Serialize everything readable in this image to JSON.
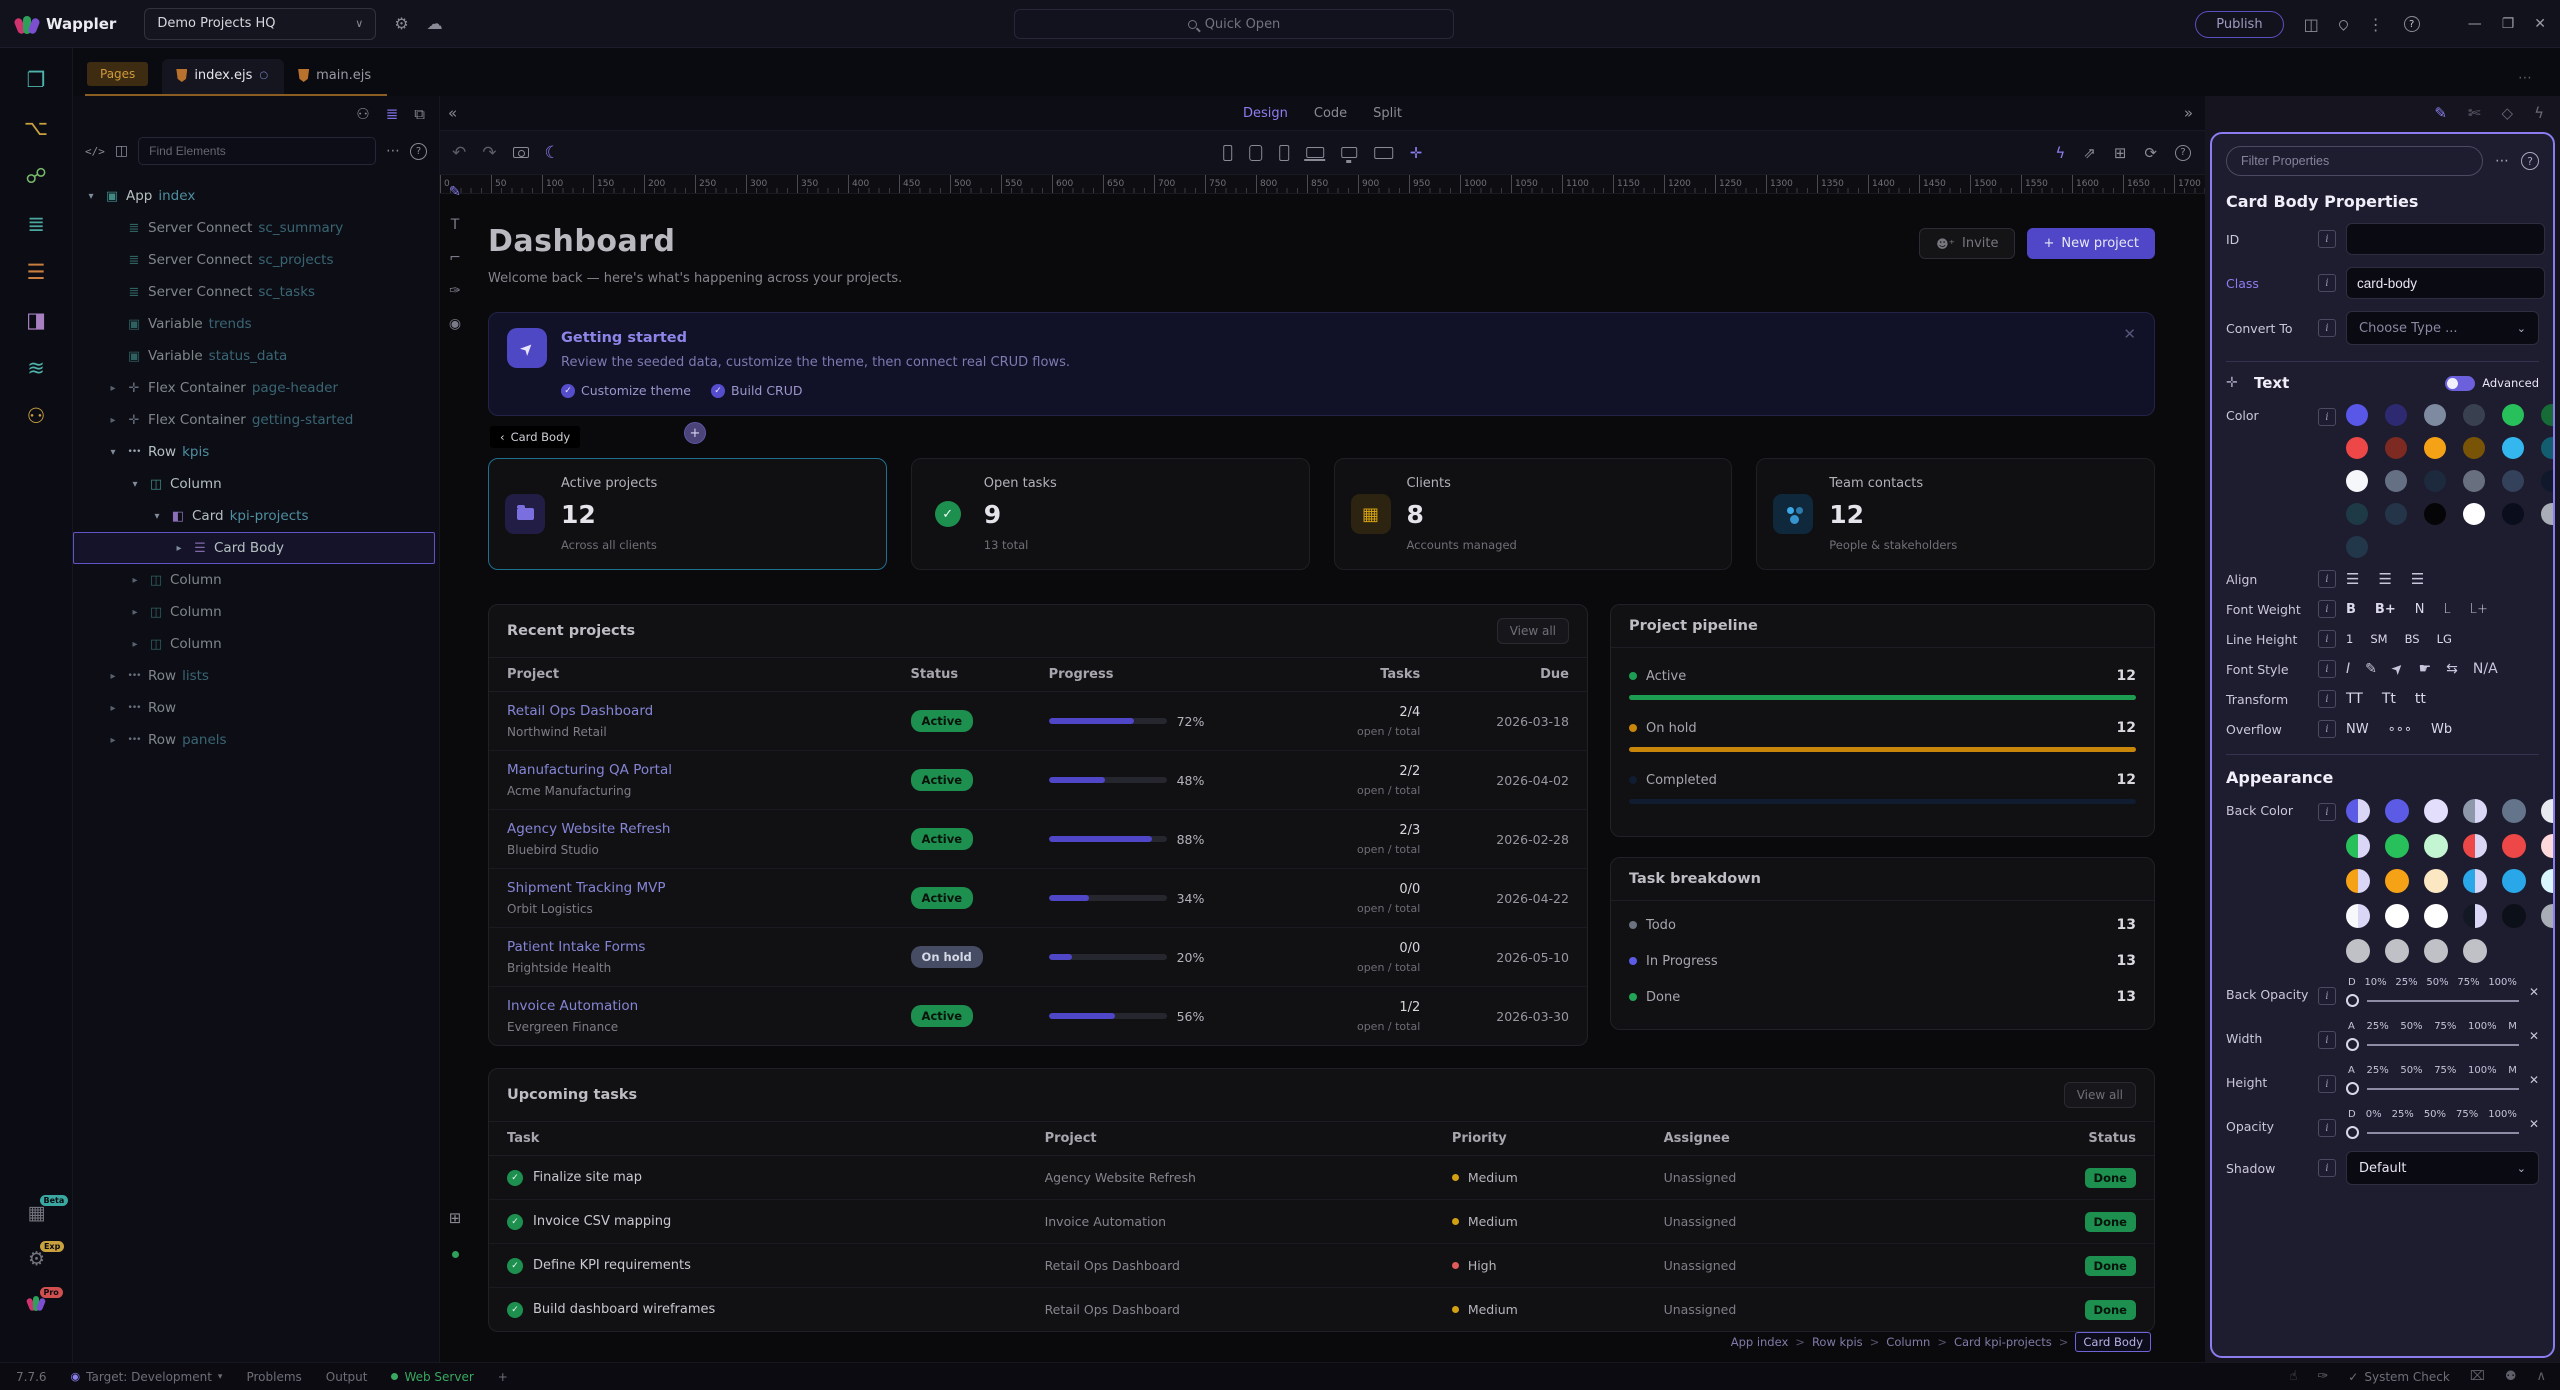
{
  "topbar": {
    "logo": "Wappler",
    "project": "Demo Projects HQ",
    "quick_open": "Quick Open",
    "publish": "Publish"
  },
  "tabs": {
    "pages": "Pages",
    "tab1": "index.ejs",
    "tab2": "main.ejs"
  },
  "rail": {
    "items": [
      {
        "icon": "pages-icon",
        "color": "#4fb3ad"
      },
      {
        "icon": "git-icon",
        "color": "#c9a23f"
      },
      {
        "icon": "workflow-icon",
        "color": "#79b86a"
      },
      {
        "icon": "database-icon",
        "color": "#4aa8a0"
      },
      {
        "icon": "routes-icon",
        "color": "#c77e3e"
      },
      {
        "icon": "design-icon",
        "color": "#a87fc0"
      },
      {
        "icon": "layers-icon",
        "color": "#4fb3ad"
      },
      {
        "icon": "robot-icon",
        "color": "#c9a23f"
      }
    ],
    "bottom": [
      {
        "icon": "puzzle-icon",
        "badge": "Beta",
        "badge_color": "#3aa8a0"
      },
      {
        "icon": "gear-icon",
        "badge": "Exp",
        "badge_color": "#c9a23f"
      },
      {
        "icon": "wappler-icon",
        "badge": "Pro",
        "badge_color": "#d05050"
      }
    ]
  },
  "treepanel": {
    "find_placeholder": "Find Elements"
  },
  "tree": {
    "items": [
      {
        "indent": 0,
        "chev": "v",
        "icon": "cube-icon",
        "color": "#3f8a84",
        "type": "App",
        "name": "index"
      },
      {
        "indent": 1,
        "chev": null,
        "icon": "database-icon",
        "color": "#3f8a84",
        "type": "Server Connect",
        "name": "sc_summary",
        "dim": true
      },
      {
        "indent": 1,
        "chev": null,
        "icon": "database-icon",
        "color": "#3f8a84",
        "type": "Server Connect",
        "name": "sc_projects",
        "dim": true
      },
      {
        "indent": 1,
        "chev": null,
        "icon": "database-icon",
        "color": "#3f8a84",
        "type": "Server Connect",
        "name": "sc_tasks",
        "dim": true
      },
      {
        "indent": 1,
        "chev": null,
        "icon": "cube-icon",
        "color": "#3f8a84",
        "type": "Variable",
        "name": "trends",
        "dim": true
      },
      {
        "indent": 1,
        "chev": null,
        "icon": "cube-icon",
        "color": "#3f8a84",
        "type": "Variable",
        "name": "status_data",
        "dim": true
      },
      {
        "indent": 1,
        "chev": ">",
        "icon": "move-icon",
        "color": "#8a96a6",
        "type": "Flex Container",
        "name": "page-header",
        "dim": true
      },
      {
        "indent": 1,
        "chev": ">",
        "icon": "move-icon",
        "color": "#8a96a6",
        "type": "Flex Container",
        "name": "getting-started",
        "dim": true
      },
      {
        "indent": 1,
        "chev": "v",
        "icon": "dots-icon",
        "color": "#9aa4ae",
        "type": "Row",
        "name": "kpis"
      },
      {
        "indent": 2,
        "chev": "v",
        "icon": "column-icon",
        "color": "#3f8a84",
        "type": "Column",
        "name": ""
      },
      {
        "indent": 3,
        "chev": "v",
        "icon": "card-icon",
        "color": "#8a6fb8",
        "type": "Card",
        "name": "kpi-projects"
      },
      {
        "indent": 4,
        "chev": ">",
        "icon": "burger-icon",
        "color": "#7e68a8",
        "type": "Card Body",
        "name": "",
        "selected": true
      },
      {
        "indent": 2,
        "chev": ">",
        "icon": "column-icon",
        "color": "#3f8a84",
        "type": "Column",
        "name": "",
        "dim": true
      },
      {
        "indent": 2,
        "chev": ">",
        "icon": "column-icon",
        "color": "#3f8a84",
        "type": "Column",
        "name": "",
        "dim": true
      },
      {
        "indent": 2,
        "chev": ">",
        "icon": "column-icon",
        "color": "#3f8a84",
        "type": "Column",
        "name": "",
        "dim": true
      },
      {
        "indent": 1,
        "chev": ">",
        "icon": "dots-icon",
        "color": "#9aa4ae",
        "type": "Row",
        "name": "lists",
        "dim": true
      },
      {
        "indent": 1,
        "chev": ">",
        "icon": "dots-icon",
        "color": "#9aa4ae",
        "type": "Row",
        "name": "",
        "dim": true
      },
      {
        "indent": 1,
        "chev": ">",
        "icon": "dots-icon",
        "color": "#9aa4ae",
        "type": "Row",
        "name": "panels",
        "dim": true
      }
    ]
  },
  "canvas": {
    "modes": {
      "design": "Design",
      "code": "Code",
      "split": "Split"
    },
    "ruler": [
      "0",
      "50",
      "100",
      "150",
      "200",
      "250",
      "300",
      "350",
      "400",
      "450",
      "500",
      "550",
      "600",
      "650",
      "700",
      "750",
      "800",
      "850",
      "900",
      "950",
      "1000",
      "1050",
      "1100",
      "1150",
      "1200",
      "1250",
      "1300",
      "1350",
      "1400",
      "1450",
      "1500",
      "1550",
      "1600",
      "1650",
      "1700"
    ]
  },
  "page": {
    "title": "Dashboard",
    "subtitle": "Welcome back — here's what's happening across your projects.",
    "invite": "Invite",
    "new_project": "New project",
    "banner": {
      "title": "Getting started",
      "desc": "Review the seeded data, customize the theme, then connect real CRUD flows.",
      "checks": [
        "Customize theme",
        "Build CRUD"
      ]
    },
    "selection_chip": "Card Body",
    "kpis": [
      {
        "title": "Active projects",
        "value": "12",
        "caption": "Across all clients",
        "icon": "folder-icon",
        "tile_bg": "#221d44",
        "selected": true
      },
      {
        "title": "Open tasks",
        "value": "9",
        "caption": "13 total",
        "icon": "check-circle-icon",
        "tile_bg": "transparent"
      },
      {
        "title": "Clients",
        "value": "8",
        "caption": "Accounts managed",
        "icon": "building-icon",
        "tile_bg": "#2c2310"
      },
      {
        "title": "Team contacts",
        "value": "12",
        "caption": "People & stakeholders",
        "icon": "people-icon",
        "tile_bg": "#10283c"
      }
    ],
    "recent": {
      "title": "Recent projects",
      "view_all": "View all",
      "headers": [
        "Project",
        "Status",
        "Progress",
        "Tasks",
        "Due"
      ],
      "tasks_sub": "open / total",
      "rows": [
        {
          "name": "Retail Ops Dashboard",
          "client": "Northwind Retail",
          "status": "Active",
          "progress": 72,
          "tasks": "2/4",
          "due": "2026-03-18"
        },
        {
          "name": "Manufacturing QA Portal",
          "client": "Acme Manufacturing",
          "status": "Active",
          "progress": 48,
          "tasks": "2/2",
          "due": "2026-04-02"
        },
        {
          "name": "Agency Website Refresh",
          "client": "Bluebird Studio",
          "status": "Active",
          "progress": 88,
          "tasks": "2/3",
          "due": "2026-02-28"
        },
        {
          "name": "Shipment Tracking MVP",
          "client": "Orbit Logistics",
          "status": "Active",
          "progress": 34,
          "tasks": "0/0",
          "due": "2026-04-22"
        },
        {
          "name": "Patient Intake Forms",
          "client": "Brightside Health",
          "status": "On hold",
          "progress": 20,
          "tasks": "0/0",
          "due": "2026-05-10"
        },
        {
          "name": "Invoice Automation",
          "client": "Evergreen Finance",
          "status": "Active",
          "progress": 56,
          "tasks": "1/2",
          "due": "2026-03-30"
        }
      ]
    },
    "pipeline": {
      "title": "Project pipeline",
      "rows": [
        {
          "label": "Active",
          "value": "12",
          "color": "#1d9d52"
        },
        {
          "label": "On hold",
          "value": "12",
          "color": "#c8860a"
        },
        {
          "label": "Completed",
          "value": "12",
          "color": "#101c30"
        }
      ]
    },
    "breakdown": {
      "title": "Task breakdown",
      "rows": [
        {
          "label": "Todo",
          "value": "13",
          "color": "#6b7280"
        },
        {
          "label": "In Progress",
          "value": "13",
          "color": "#5b5be6"
        },
        {
          "label": "Done",
          "value": "13",
          "color": "#22a355"
        }
      ]
    },
    "upcoming": {
      "title": "Upcoming tasks",
      "view_all": "View all",
      "headers": [
        "Task",
        "Project",
        "Priority",
        "Assignee",
        "Status"
      ],
      "rows": [
        {
          "task": "Finalize site map",
          "project": "Agency Website Refresh",
          "priority": "Medium",
          "priority_color": "#d2a012",
          "assignee": "Unassigned",
          "status": "Done"
        },
        {
          "task": "Invoice CSV mapping",
          "project": "Invoice Automation",
          "priority": "Medium",
          "priority_color": "#d2a012",
          "assignee": "Unassigned",
          "status": "Done"
        },
        {
          "task": "Define KPI requirements",
          "project": "Retail Ops Dashboard",
          "priority": "High",
          "priority_color": "#e05b5b",
          "assignee": "Unassigned",
          "status": "Done"
        },
        {
          "task": "Build dashboard wireframes",
          "project": "Retail Ops Dashboard",
          "priority": "Medium",
          "priority_color": "#d2a012",
          "assignee": "Unassigned",
          "status": "Done"
        }
      ]
    },
    "breadcrumb": [
      "App index",
      "Row kpis",
      "Column",
      "Card kpi-projects",
      "Card Body"
    ]
  },
  "properties": {
    "filter_placeholder": "Filter Properties",
    "heading": "Card Body Properties",
    "fields": {
      "id_label": "ID",
      "id_value": "",
      "class_label": "Class",
      "class_value": "card-body",
      "convert_label": "Convert To",
      "convert_placeholder": "Choose Type ..."
    },
    "text_section": "Text",
    "advanced": "Advanced",
    "labels": {
      "color": "Color",
      "align": "Align",
      "font_weight": "Font Weight",
      "line_height": "Line Height",
      "font_style": "Font Style",
      "transform": "Transform",
      "overflow": "Overflow"
    },
    "font_weight": [
      "B",
      "B+",
      "N",
      "L",
      "L+"
    ],
    "line_height": [
      "1",
      "SM",
      "BS",
      "LG"
    ],
    "font_style": [
      "italic-icon",
      "highlight-icon",
      "rocket-icon",
      "hand-icon",
      "text-width-icon",
      "N/A"
    ],
    "transform": [
      "TT",
      "Tt",
      "tt"
    ],
    "overflow": [
      "NW",
      "∘∘∘",
      "Wb"
    ],
    "text_color_swatches": [
      "#5857e8",
      "#2e2a72",
      "#7d8aa0",
      "#394150",
      "#27c05b",
      "#176b36",
      "#ee4747",
      "#7c2a22",
      "#f5a216",
      "#7a5406",
      "#33b7ee",
      "#135d70",
      "#f5f7fa",
      "#667084",
      "#1d2a3d",
      "#687080",
      "#33415b",
      "#10192b",
      "#1d3a46",
      "#24354a",
      "#050507",
      "#ffffff",
      "#0a0e1c",
      "#a9adb5",
      "#22384a"
    ],
    "appearance_section": "Appearance",
    "back_color_label": "Back Color",
    "back_color_swatches": [
      "split:#5b5be6|#d9d6f6",
      "#5b5be6",
      "#e2defb",
      "split:#8e98ab|#d9d6f6",
      "#64748b",
      "#e8eaf0",
      "split:#27c05b|#d9d6f6",
      "#27c05b",
      "#c3f5d2",
      "split:#ee4747|#d9d6f6",
      "#ee4747",
      "#fdd9dc",
      "split:#f5a216|#d9d6f6",
      "#f5a216",
      "#fbe8c3",
      "split:#2aa7e8|#d9d6f6",
      "#2aa7e8",
      "#d9f5fd",
      "split:#f7f8fb|#d9d6f6",
      "#ffffff",
      "#ffffff",
      "split:#141824|#d9d6f6",
      "#0c1018",
      "#a9adb5",
      "#bfc1c6",
      "#bfc1c6",
      "#bfc1c6",
      "#bfc1c6"
    ],
    "sliders": [
      {
        "label": "Back Opacity",
        "ticks": [
          "D",
          "10%",
          "25%",
          "50%",
          "75%",
          "100%"
        ]
      },
      {
        "label": "Width",
        "ticks": [
          "A",
          "25%",
          "50%",
          "75%",
          "100%",
          "M"
        ]
      },
      {
        "label": "Height",
        "ticks": [
          "A",
          "25%",
          "50%",
          "75%",
          "100%",
          "M"
        ]
      },
      {
        "label": "Opacity",
        "ticks": [
          "D",
          "0%",
          "25%",
          "50%",
          "75%",
          "100%"
        ]
      }
    ],
    "shadow": {
      "label": "Shadow",
      "value": "Default"
    }
  },
  "statusbar": {
    "version": "7.7.6",
    "target": "Target: Development",
    "problems": "Problems",
    "output": "Output",
    "web_server": "Web Server",
    "system_check": "System Check"
  }
}
